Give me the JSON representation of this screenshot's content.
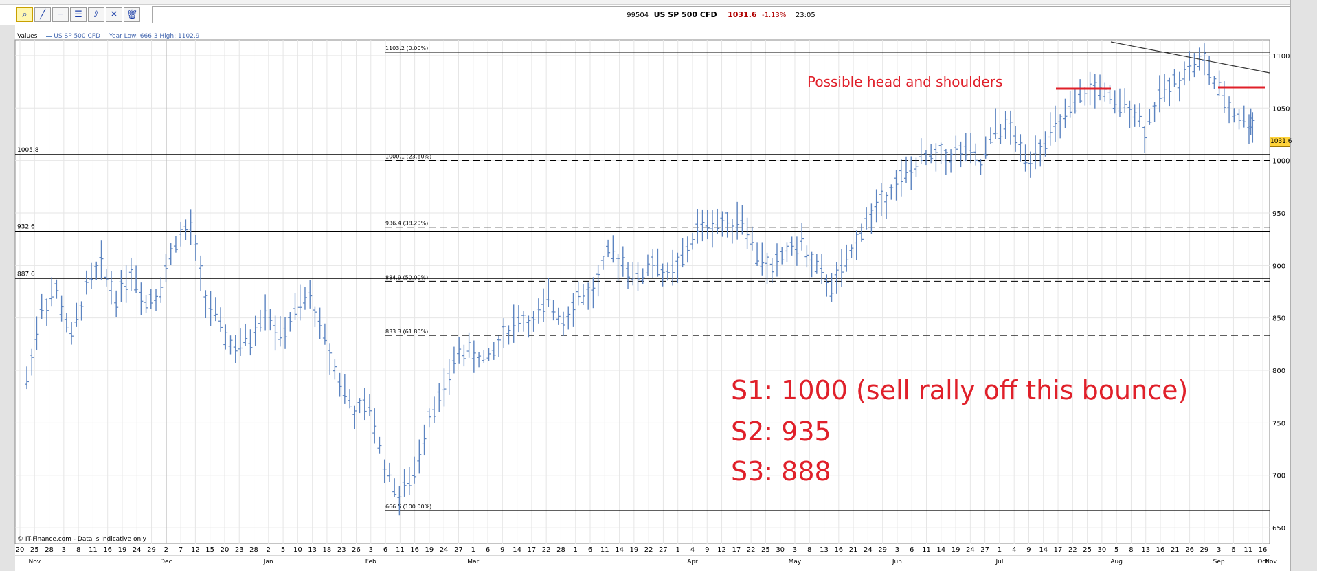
{
  "header": {
    "code": "99504",
    "instrument": "US SP 500 CFD",
    "price": "1031.6",
    "change": "-1.13%",
    "time": "23:05"
  },
  "toolbar": {
    "tools": [
      "zoom-icon",
      "line-icon",
      "horizontal-line-icon",
      "fibonacci-icon",
      "parallel-lines-icon",
      "cross-line-icon",
      "trash-icon"
    ]
  },
  "legend": {
    "values_label": "Values",
    "series_name": "US SP 500 CFD",
    "year_range": "Year Low: 666.3  High: 1102.9"
  },
  "copyright": "© IT-Finance.com - Data is indicative only",
  "price_tag": "1031.6",
  "annotations": {
    "head_shoulders": "Possible head and shoulders",
    "s1": "S1: 1000 (sell rally off this bounce)",
    "s2": "S2: 935",
    "s3": "S3: 888"
  },
  "colors": {
    "series": "#5c84c1",
    "annotation": "#e0202a",
    "grid": "#e6e6e6"
  },
  "chart_data": {
    "type": "ohlc",
    "series_name": "US SP 500 CFD",
    "ylim": [
      635,
      1115
    ],
    "yticks": [
      650,
      700,
      750,
      800,
      850,
      900,
      950,
      1000,
      1050,
      1100
    ],
    "horizontal_lines": [
      {
        "label": "1005.8",
        "value": 1005.8
      },
      {
        "label": "932.6",
        "value": 932.6
      },
      {
        "label": "887.6",
        "value": 887.6
      }
    ],
    "fibonacci_levels": [
      {
        "label": "1103.2 (0.00%)",
        "value": 1103.2
      },
      {
        "label": "1000.1 (23.60%)",
        "value": 1000.1
      },
      {
        "label": "936.4 (38.20%)",
        "value": 936.4
      },
      {
        "label": "884.9 (50.00%)",
        "value": 884.9
      },
      {
        "label": "833.3 (61.80%)",
        "value": 833.3
      },
      {
        "label": "666.5 (100.00%)",
        "value": 666.5
      }
    ],
    "day_labels": [
      "20",
      "25",
      "28",
      "3",
      "8",
      "11",
      "16",
      "19",
      "24",
      "29",
      "2",
      "7",
      "12",
      "15",
      "20",
      "23",
      "28",
      "2",
      "5",
      "10",
      "13",
      "18",
      "23",
      "26",
      "3",
      "6",
      "11",
      "16",
      "19",
      "24",
      "27",
      "1",
      "6",
      "9",
      "14",
      "17",
      "22",
      "28",
      "1",
      "6",
      "11",
      "14",
      "19",
      "22",
      "27",
      "1",
      "4",
      "9",
      "12",
      "17",
      "22",
      "25",
      "30",
      "3",
      "8",
      "13",
      "16",
      "21",
      "24",
      "29",
      "3",
      "6",
      "11",
      "14",
      "19",
      "24",
      "27",
      "1",
      "4",
      "9",
      "14",
      "17",
      "22",
      "25",
      "30",
      "5",
      "8",
      "13",
      "16",
      "21",
      "26",
      "29",
      "3",
      "6",
      "11",
      "16"
    ],
    "month_labels": [
      "Nov",
      "Dec",
      "Jan",
      "Feb",
      "Mar",
      "Apr",
      "May",
      "Jun",
      "Jul",
      "Aug",
      "Sep",
      "Oct",
      "Nov"
    ],
    "close_path": [
      {
        "date": "Nov 20",
        "close": 790
      },
      {
        "date": "Nov 25",
        "close": 860
      },
      {
        "date": "Nov 28",
        "close": 875
      },
      {
        "date": "Dec 3",
        "close": 830
      },
      {
        "date": "Dec 8",
        "close": 880
      },
      {
        "date": "Dec 11",
        "close": 900
      },
      {
        "date": "Dec 16",
        "close": 870
      },
      {
        "date": "Dec 19",
        "close": 895
      },
      {
        "date": "Dec 24",
        "close": 865
      },
      {
        "date": "Dec 29",
        "close": 880
      },
      {
        "date": "Jan 2",
        "close": 925
      },
      {
        "date": "Jan 7",
        "close": 935
      },
      {
        "date": "Jan 12",
        "close": 870
      },
      {
        "date": "Jan 15",
        "close": 840
      },
      {
        "date": "Jan 20",
        "close": 820
      },
      {
        "date": "Jan 23",
        "close": 830
      },
      {
        "date": "Jan 28",
        "close": 860
      },
      {
        "date": "Feb 2",
        "close": 830
      },
      {
        "date": "Feb 5",
        "close": 855
      },
      {
        "date": "Feb 10",
        "close": 870
      },
      {
        "date": "Feb 13",
        "close": 830
      },
      {
        "date": "Feb 18",
        "close": 790
      },
      {
        "date": "Feb 23",
        "close": 760
      },
      {
        "date": "Feb 26",
        "close": 765
      },
      {
        "date": "Mar 3",
        "close": 710
      },
      {
        "date": "Mar 6",
        "close": 680
      },
      {
        "date": "Mar 11",
        "close": 700
      },
      {
        "date": "Mar 16",
        "close": 760
      },
      {
        "date": "Mar 19",
        "close": 780
      },
      {
        "date": "Mar 24",
        "close": 820
      },
      {
        "date": "Mar 27",
        "close": 815
      },
      {
        "date": "Apr 1",
        "close": 810
      },
      {
        "date": "Apr 6",
        "close": 835
      },
      {
        "date": "Apr 9",
        "close": 850
      },
      {
        "date": "Apr 14",
        "close": 845
      },
      {
        "date": "Apr 17",
        "close": 865
      },
      {
        "date": "Apr 22",
        "close": 850
      },
      {
        "date": "Apr 28",
        "close": 870
      },
      {
        "date": "May 1",
        "close": 875
      },
      {
        "date": "May 6",
        "close": 910
      },
      {
        "date": "May 11",
        "close": 905
      },
      {
        "date": "May 14",
        "close": 885
      },
      {
        "date": "May 19",
        "close": 905
      },
      {
        "date": "May 22",
        "close": 890
      },
      {
        "date": "May 27",
        "close": 905
      },
      {
        "date": "Jun 1",
        "close": 935
      },
      {
        "date": "Jun 4",
        "close": 940
      },
      {
        "date": "Jun 9",
        "close": 940
      },
      {
        "date": "Jun 12",
        "close": 945
      },
      {
        "date": "Jun 17",
        "close": 910
      },
      {
        "date": "Jun 22",
        "close": 895
      },
      {
        "date": "Jun 25",
        "close": 915
      },
      {
        "date": "Jun 30",
        "close": 920
      },
      {
        "date": "Jul 3",
        "close": 895
      },
      {
        "date": "Jul 8",
        "close": 880
      },
      {
        "date": "Jul 13",
        "close": 900
      },
      {
        "date": "Jul 16",
        "close": 935
      },
      {
        "date": "Jul 21",
        "close": 955
      },
      {
        "date": "Jul 24",
        "close": 975
      },
      {
        "date": "Jul 29",
        "close": 985
      },
      {
        "date": "Aug 3",
        "close": 1000
      },
      {
        "date": "Aug 6",
        "close": 1005
      },
      {
        "date": "Aug 11",
        "close": 1005
      },
      {
        "date": "Aug 14",
        "close": 1010
      },
      {
        "date": "Aug 19",
        "close": 995
      },
      {
        "date": "Aug 24",
        "close": 1030
      },
      {
        "date": "Aug 27",
        "close": 1030
      },
      {
        "date": "Sep 1",
        "close": 1000
      },
      {
        "date": "Sep 4",
        "close": 1015
      },
      {
        "date": "Sep 9",
        "close": 1030
      },
      {
        "date": "Sep 14",
        "close": 1045
      },
      {
        "date": "Sep 17",
        "close": 1065
      },
      {
        "date": "Sep 22",
        "close": 1070
      },
      {
        "date": "Sep 25",
        "close": 1050
      },
      {
        "date": "Sep 30",
        "close": 1055
      },
      {
        "date": "Oct 5",
        "close": 1030
      },
      {
        "date": "Oct 8",
        "close": 1060
      },
      {
        "date": "Oct 13",
        "close": 1075
      },
      {
        "date": "Oct 16",
        "close": 1090
      },
      {
        "date": "Oct 21",
        "close": 1095
      },
      {
        "date": "Oct 26",
        "close": 1065
      },
      {
        "date": "Oct 29",
        "close": 1045
      },
      {
        "date": "Nov 3",
        "close": 1035
      }
    ],
    "annotation_marks": [
      {
        "type": "neckline-segment",
        "y": 1083
      },
      {
        "type": "neckline-segment",
        "y": 1083
      },
      {
        "type": "trendline",
        "from": 1129,
        "to": 1098
      }
    ]
  }
}
